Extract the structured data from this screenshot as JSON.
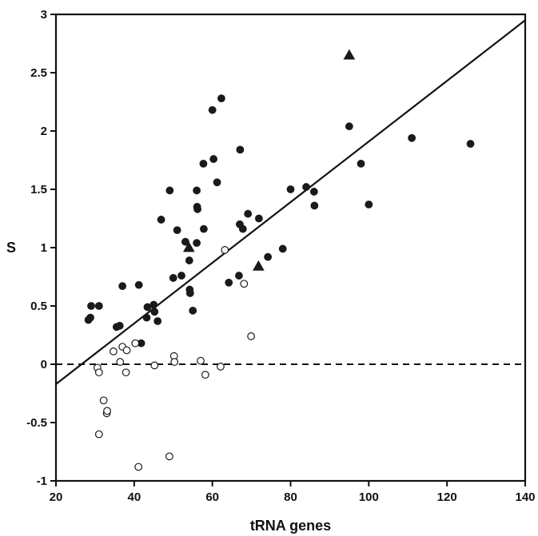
{
  "chart_data": {
    "type": "scatter",
    "title": "",
    "xlabel": "tRNA genes",
    "ylabel": "S",
    "xlim": [
      20,
      140
    ],
    "ylim": [
      -1,
      3
    ],
    "xticks": [
      20,
      40,
      60,
      80,
      100,
      120,
      140
    ],
    "yticks": [
      -1,
      -0.5,
      0,
      0.5,
      1,
      1.5,
      2,
      2.5,
      3
    ],
    "grid": false,
    "legend": "none",
    "colors": {
      "axis": "#111111",
      "filled": "#1a1a1a",
      "open_fill": "#ffffff"
    },
    "series": [
      {
        "marker": "filled-circle",
        "points": [
          [
            28.3,
            0.38
          ],
          [
            28.8,
            0.4
          ],
          [
            29.0,
            0.5
          ],
          [
            31.0,
            0.5
          ],
          [
            35.5,
            0.32
          ],
          [
            36.3,
            0.33
          ],
          [
            37.0,
            0.67
          ],
          [
            41.2,
            0.68
          ],
          [
            41.8,
            0.18
          ],
          [
            43.2,
            0.4
          ],
          [
            43.4,
            0.49
          ],
          [
            45.0,
            0.51
          ],
          [
            45.2,
            0.45
          ],
          [
            46.0,
            0.37
          ],
          [
            46.9,
            1.24
          ],
          [
            49.1,
            1.49
          ],
          [
            50.0,
            0.74
          ],
          [
            51.0,
            1.15
          ],
          [
            52.1,
            0.76
          ],
          [
            53.1,
            1.05
          ],
          [
            54.1,
            0.89
          ],
          [
            54.2,
            0.64
          ],
          [
            54.3,
            0.61
          ],
          [
            55.0,
            0.46
          ],
          [
            56.0,
            1.04
          ],
          [
            56.0,
            1.49
          ],
          [
            56.1,
            1.35
          ],
          [
            56.2,
            1.33
          ],
          [
            57.7,
            1.72
          ],
          [
            57.8,
            1.16
          ],
          [
            60.0,
            2.18
          ],
          [
            60.3,
            1.76
          ],
          [
            61.2,
            1.56
          ],
          [
            62.3,
            2.28
          ],
          [
            64.2,
            0.7
          ],
          [
            66.8,
            0.76
          ],
          [
            67.0,
            1.2
          ],
          [
            67.1,
            1.84
          ],
          [
            67.8,
            1.16
          ],
          [
            69.1,
            1.29
          ],
          [
            71.9,
            1.25
          ],
          [
            74.2,
            0.92
          ],
          [
            78.0,
            0.99
          ],
          [
            80.0,
            1.5
          ],
          [
            84.0,
            1.52
          ],
          [
            86.0,
            1.48
          ],
          [
            86.1,
            1.36
          ],
          [
            95.0,
            2.04
          ],
          [
            98.0,
            1.72
          ],
          [
            100.0,
            1.37
          ],
          [
            111.0,
            1.94
          ],
          [
            126.0,
            1.89
          ]
        ]
      },
      {
        "marker": "open-circle",
        "points": [
          [
            30.6,
            -0.03
          ],
          [
            31.0,
            -0.07
          ],
          [
            31.0,
            -0.6
          ],
          [
            32.2,
            -0.31
          ],
          [
            33.0,
            -0.42
          ],
          [
            33.1,
            -0.4
          ],
          [
            34.7,
            0.11
          ],
          [
            36.4,
            0.02
          ],
          [
            37.0,
            0.15
          ],
          [
            37.9,
            -0.07
          ],
          [
            38.1,
            0.12
          ],
          [
            40.3,
            0.18
          ],
          [
            41.1,
            -0.88
          ],
          [
            45.2,
            -0.01
          ],
          [
            49.0,
            -0.79
          ],
          [
            50.2,
            0.07
          ],
          [
            50.3,
            0.02
          ],
          [
            57.0,
            0.03
          ],
          [
            58.2,
            -0.09
          ],
          [
            62.1,
            -0.02
          ],
          [
            63.2,
            0.98
          ],
          [
            68.1,
            0.69
          ],
          [
            69.9,
            0.24
          ]
        ]
      },
      {
        "marker": "filled-triangle",
        "points": [
          [
            54.0,
            1.0
          ],
          [
            71.8,
            0.84
          ],
          [
            95.0,
            2.65
          ]
        ]
      }
    ],
    "lines": [
      {
        "style": "solid",
        "x": [
          20,
          140
        ],
        "y": [
          -0.17,
          2.95
        ]
      },
      {
        "style": "dashed",
        "x": [
          20,
          140
        ],
        "y": [
          0,
          0
        ]
      }
    ]
  }
}
